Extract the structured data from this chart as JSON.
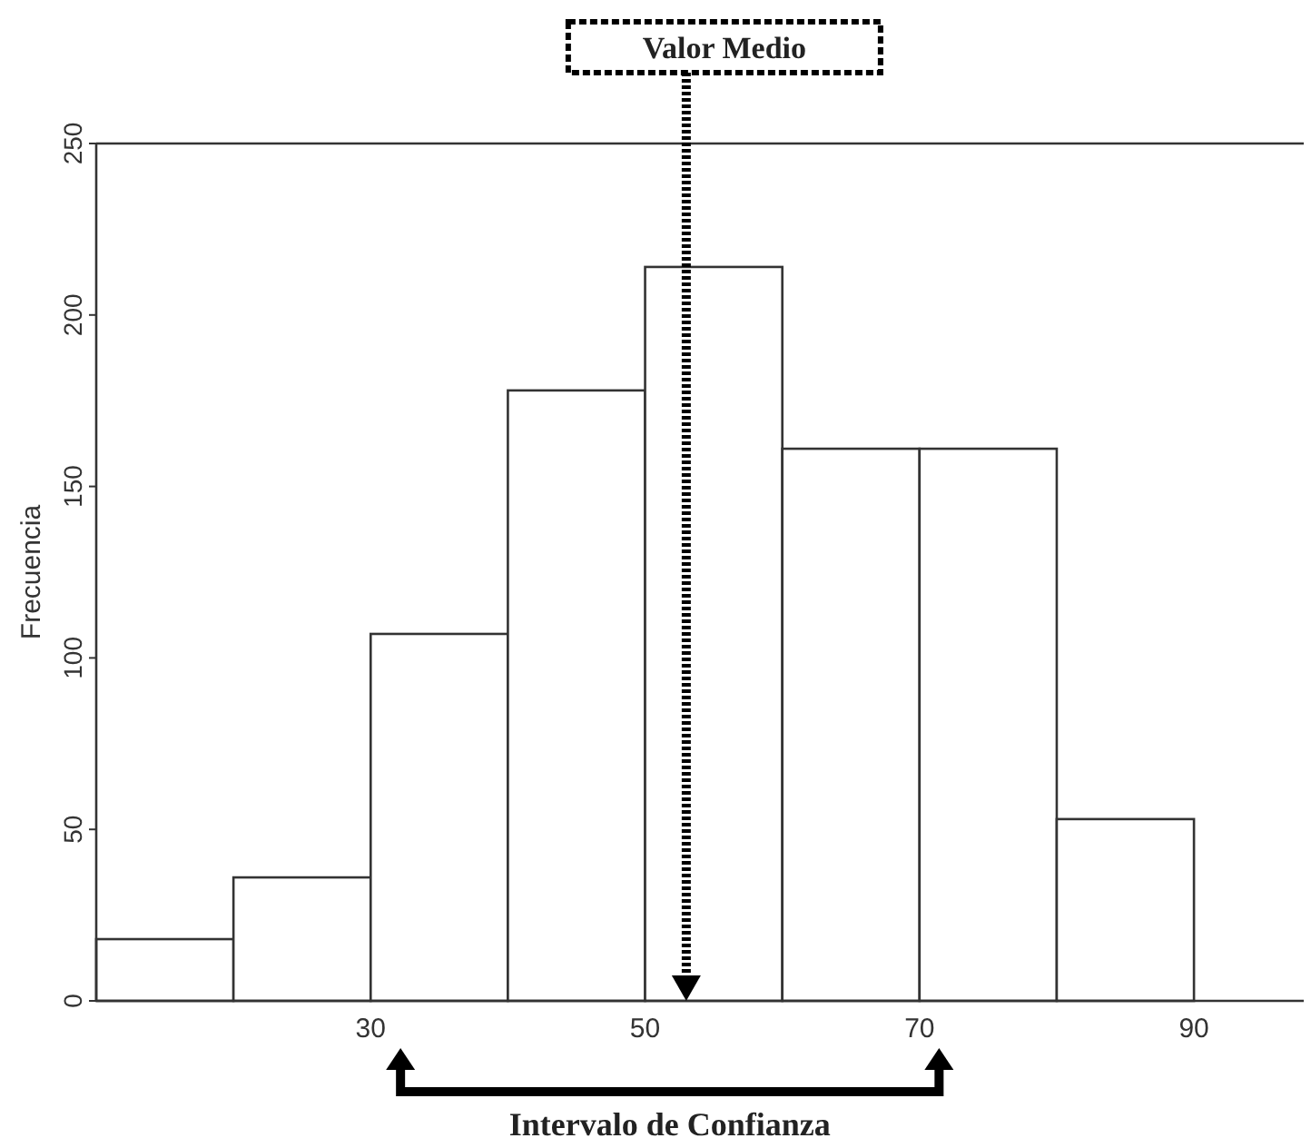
{
  "chart_data": {
    "type": "histogram",
    "ylabel": "Frecuencia",
    "bins": [
      10,
      20,
      30,
      40,
      50,
      60,
      70,
      80,
      90
    ],
    "values": [
      18,
      36,
      107,
      178,
      214,
      161,
      161,
      53
    ],
    "color": "#ffffff",
    "xlim": [
      10,
      98
    ],
    "xticks": [
      30,
      50,
      70,
      90
    ],
    "ylim": [
      0,
      250
    ],
    "yticks": [
      0,
      50,
      100,
      150,
      200,
      250
    ],
    "grid": false,
    "ref_lines": [
      {
        "axis": "x",
        "value": 53,
        "label": "Valor Medio",
        "line_style": "dotted",
        "color": "#000000"
      }
    ],
    "annotations": [
      "Intervalo de Confianza"
    ]
  }
}
